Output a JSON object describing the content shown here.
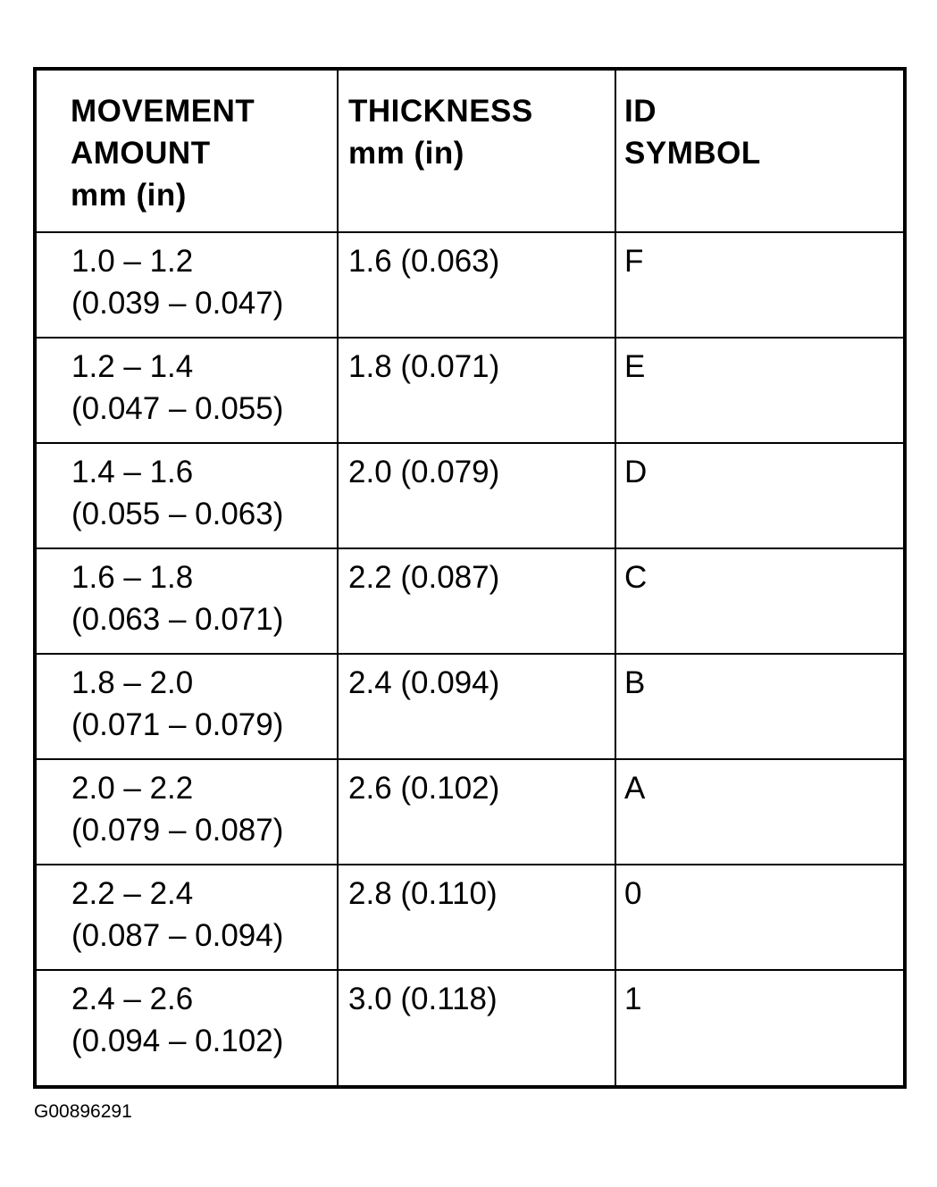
{
  "table": {
    "headers": [
      [
        "MOVEMENT",
        "AMOUNT",
        "mm (in)"
      ],
      [
        "THICKNESS",
        "mm (in)"
      ],
      [
        "ID",
        "SYMBOL"
      ]
    ],
    "rows": [
      {
        "movement": [
          "1.0 – 1.2",
          "(0.039 – 0.047)"
        ],
        "thickness": "1.6 (0.063)",
        "id": "F"
      },
      {
        "movement": [
          "1.2 – 1.4",
          "(0.047 – 0.055)"
        ],
        "thickness": "1.8 (0.071)",
        "id": "E"
      },
      {
        "movement": [
          "1.4 – 1.6",
          "(0.055 – 0.063)"
        ],
        "thickness": "2.0 (0.079)",
        "id": "D"
      },
      {
        "movement": [
          "1.6 – 1.8",
          "(0.063 – 0.071)"
        ],
        "thickness": "2.2 (0.087)",
        "id": "C"
      },
      {
        "movement": [
          "1.8 – 2.0",
          "(0.071 – 0.079)"
        ],
        "thickness": "2.4 (0.094)",
        "id": "B"
      },
      {
        "movement": [
          "2.0 – 2.2",
          "(0.079 – 0.087)"
        ],
        "thickness": "2.6 (0.102)",
        "id": "A"
      },
      {
        "movement": [
          "2.2 – 2.4",
          "(0.087 – 0.094)"
        ],
        "thickness": "2.8 (0.110)",
        "id": "0"
      },
      {
        "movement": [
          "2.4 – 2.6",
          "(0.094 – 0.102)"
        ],
        "thickness": "3.0 (0.118)",
        "id": "1"
      }
    ]
  },
  "footer": {
    "figure_id": "G00896291"
  }
}
